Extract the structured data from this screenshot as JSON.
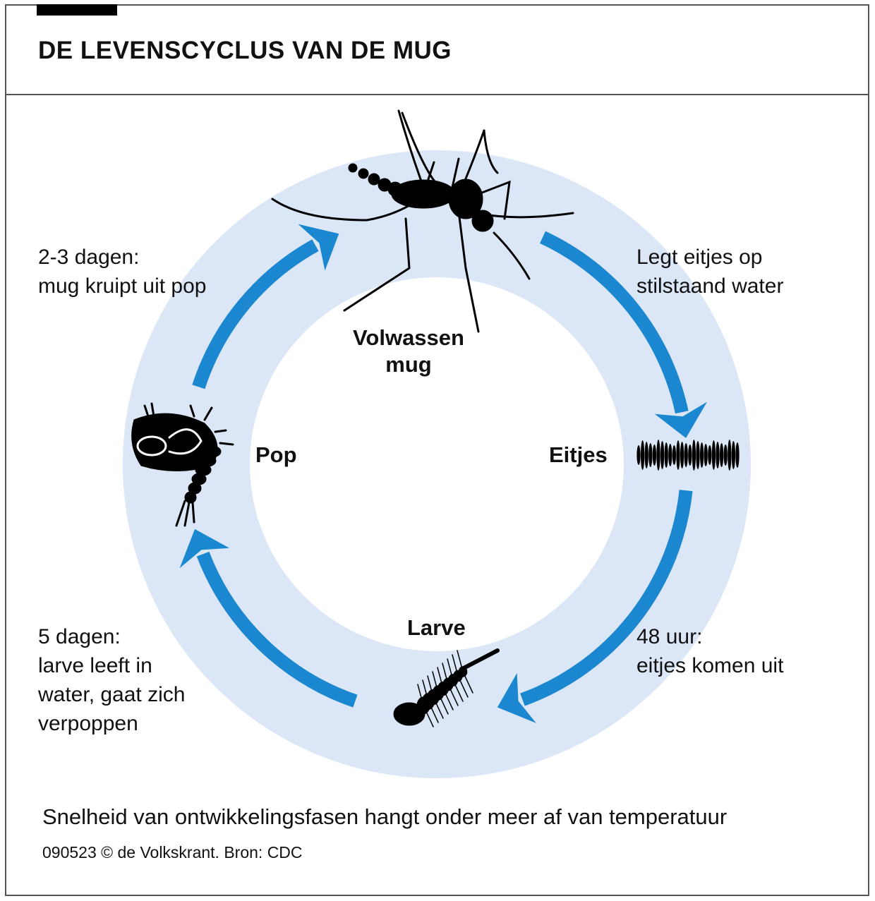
{
  "header": {
    "title": "DE LEVENSCYCLUS VAN DE MUG"
  },
  "colors": {
    "ring": "#dbe6f6",
    "arrow": "#1b87d0",
    "ink": "#000000"
  },
  "stages": {
    "adult": "Volwassen mug",
    "eggs": "Eitjes",
    "larva": "Larve",
    "pupa": "Pop"
  },
  "descriptions": {
    "adult_to_eggs": [
      "Legt eitjes op",
      "stilstaand water"
    ],
    "eggs_to_larva": [
      "48 uur:",
      "eitjes komen uit"
    ],
    "larva_to_pupa": [
      "5 dagen:",
      "larve leeft in",
      "water, gaat zich",
      "verpoppen"
    ],
    "pupa_to_adult": [
      "2-3 dagen:",
      "mug kruipt uit pop"
    ]
  },
  "footer": {
    "note": "Snelheid van ontwikkelingsfasen hangt onder meer af van temperatuur",
    "source": "090523 © de Volkskrant. Bron: CDC"
  }
}
